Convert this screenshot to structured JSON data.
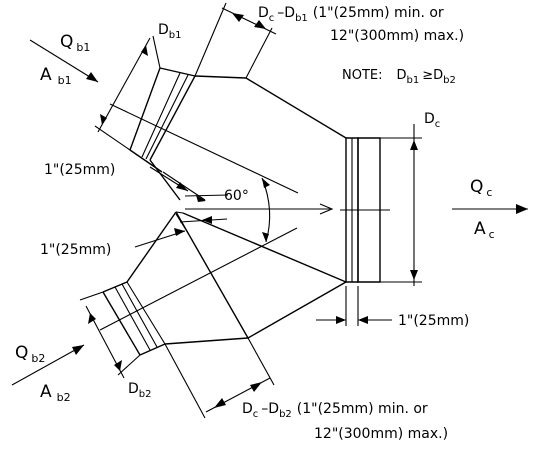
{
  "note": {
    "label": "NOTE:",
    "relation_left": "D",
    "relation_left_sub": "b1",
    "relation_symbol": "≥",
    "relation_right": "D",
    "relation_right_sub": "b2"
  },
  "branch1": {
    "flow_symbol": "Q",
    "flow_sub": "b1",
    "area_symbol": "A",
    "area_sub": "b1",
    "diameter_symbol": "D",
    "diameter_sub": "b1",
    "length_dim_left": "D",
    "length_dim_left_sub": "c",
    "length_dim_minus": "–D",
    "length_dim_minus_sub": "b1",
    "length_dim_line1": "(1\"(25mm) min. or",
    "length_dim_line2": "12\"(300mm) max.)",
    "spacing_label": "1\"(25mm)"
  },
  "branch2": {
    "flow_symbol": "Q",
    "flow_sub": "b2",
    "area_symbol": "A",
    "area_sub": "b2",
    "diameter_symbol": "D",
    "diameter_sub": "b2",
    "length_dim_left": "D",
    "length_dim_left_sub": "c",
    "length_dim_minus": "–D",
    "length_dim_minus_sub": "b2",
    "length_dim_line1": "(1\"(25mm) min. or",
    "length_dim_line2": "12\"(300mm) max.)",
    "spacing_label": "1\"(25mm)"
  },
  "common": {
    "flow_symbol": "Q",
    "flow_sub": "c",
    "area_symbol": "A",
    "area_sub": "c",
    "diameter_symbol": "D",
    "diameter_sub": "c",
    "collar_label": "1\"(25mm)"
  },
  "angle_label": "60°"
}
